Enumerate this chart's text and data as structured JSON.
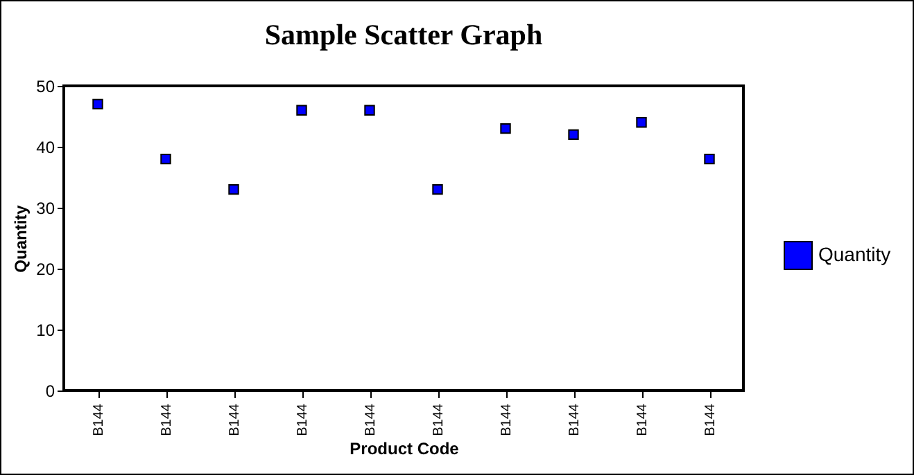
{
  "chart_data": {
    "type": "scatter",
    "title": "Sample Scatter Graph",
    "xlabel": "Product Code",
    "ylabel": "Quantity",
    "categories": [
      "B144",
      "B144",
      "B144",
      "B144",
      "B144",
      "B144",
      "B144",
      "B144",
      "B144",
      "B144"
    ],
    "series": [
      {
        "name": "Quantity",
        "color": "#0000ff",
        "values": [
          47,
          38,
          33,
          46,
          46,
          33,
          43,
          42,
          44,
          38
        ]
      }
    ],
    "ylim": [
      0,
      50
    ],
    "yticks": [
      0,
      10,
      20,
      30,
      40,
      50
    ],
    "grid": false,
    "legend": "right",
    "marker": "square"
  }
}
